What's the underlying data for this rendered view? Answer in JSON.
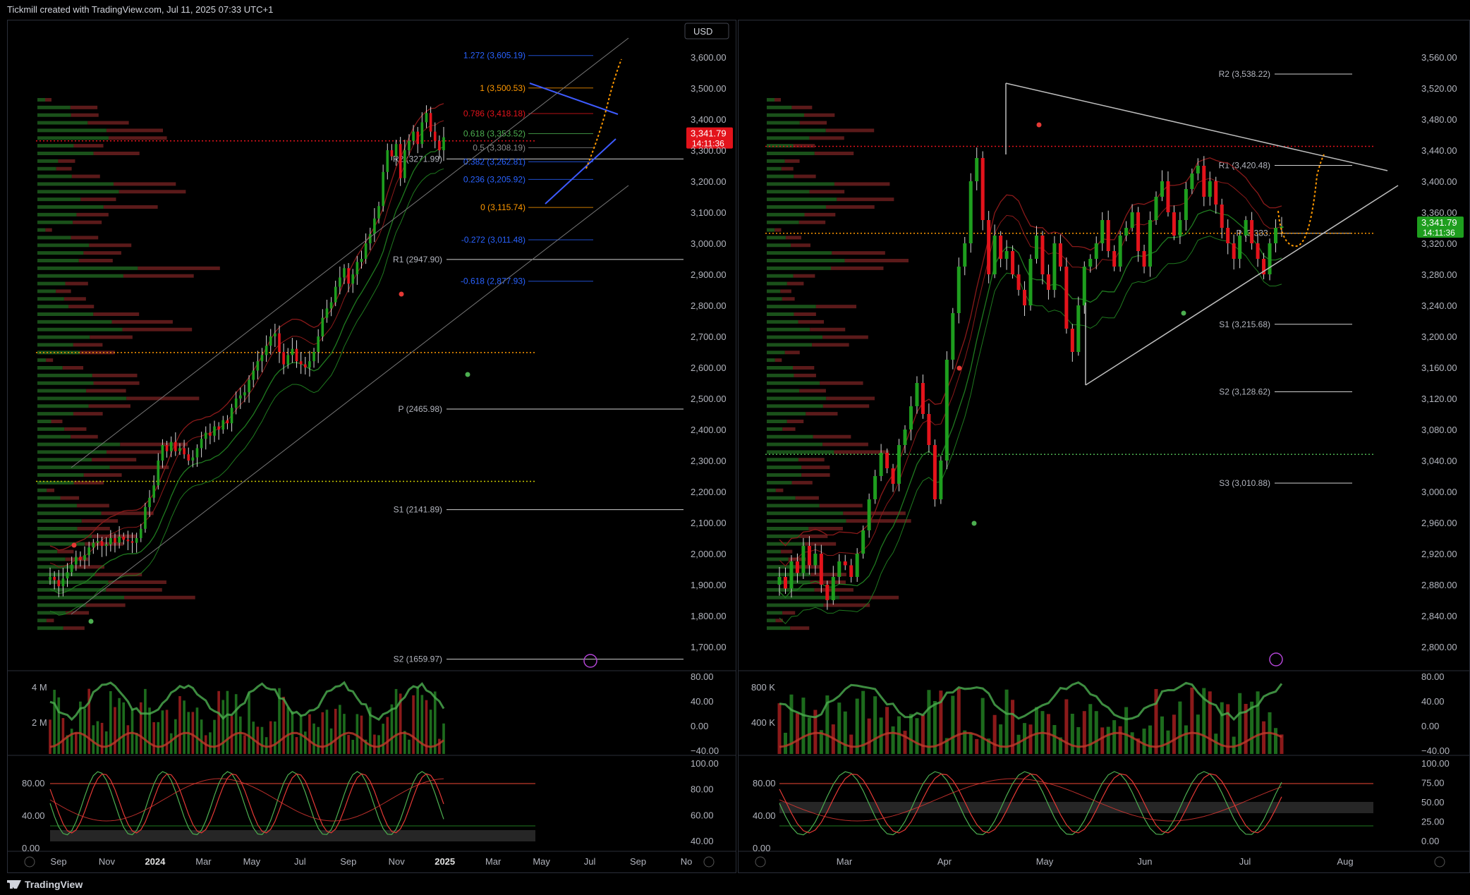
{
  "header": {
    "title": "Tickmill created with TradingView.com, Jul 11, 2025 07:33 UTC+1"
  },
  "footer": {
    "brand": "TradingView"
  },
  "colors": {
    "up": "#26a69a",
    "green": "#1b8a1b",
    "red": "#e3131b",
    "orange": "#ff9800",
    "blue": "#2962ff",
    "bg": "#000000"
  },
  "chart_data": [
    {
      "type": "candlestick",
      "panel": "left-weekly",
      "currency_label": "USD",
      "price_axis_ticks": [
        "3,600.00",
        "3,500.00",
        "3,400.00",
        "3,300.00",
        "3,200.00",
        "3,100.00",
        "3,000.00",
        "2,900.00",
        "2,800.00",
        "2,700.00",
        "2,600.00",
        "2,500.00",
        "2,400.00",
        "2,300.00",
        "2,200.00",
        "2,100.00",
        "2,000.00",
        "1,900.00",
        "1,800.00",
        "1,700.00"
      ],
      "ylim": [
        1650,
        3650
      ],
      "time_axis_ticks": [
        "Sep",
        "Nov",
        "2024",
        "Mar",
        "May",
        "Jul",
        "Sep",
        "Nov",
        "2025",
        "Mar",
        "May",
        "Jul",
        "Sep",
        "No"
      ],
      "last_price": "3,341.79",
      "countdown": "14:11:36",
      "fib_levels": [
        {
          "label": "1.272 (3,605.19)",
          "value": 3605.19,
          "color": "#2962ff"
        },
        {
          "label": "1 (3,500.53)",
          "value": 3500.53,
          "color": "#ff9800"
        },
        {
          "label": "0.786 (3,418.18)",
          "value": 3418.18,
          "color": "#e3131b"
        },
        {
          "label": "0.618 (3,353.52)",
          "value": 3353.52,
          "color": "#4caf50"
        },
        {
          "label": "0.5 (3,308.19)",
          "value": 3308.19,
          "color": "#888888"
        },
        {
          "label": "0.382 (3,262.81)",
          "value": 3262.81,
          "color": "#2962ff"
        },
        {
          "label": "0.236 (3,205.92)",
          "value": 3205.92,
          "color": "#2962ff"
        },
        {
          "label": "0 (3,115.74)",
          "value": 3115.74,
          "color": "#ff9800"
        },
        {
          "label": "-0.272 (3,011.48)",
          "value": 3011.48,
          "color": "#2962ff"
        },
        {
          "label": "-0.618 (2,877.93)",
          "value": 2877.93,
          "color": "#2962ff"
        }
      ],
      "pivot_levels": [
        {
          "label": "R2 (3271.99)",
          "value": 3271.99
        },
        {
          "label": "R1 (2947.90)",
          "value": 2947.9
        },
        {
          "label": "P (2465.98)",
          "value": 2465.98
        },
        {
          "label": "S1 (2141.89)",
          "value": 2141.89
        },
        {
          "label": "S2 (1659.97)",
          "value": 1659.97
        }
      ],
      "closes": [
        1925,
        1915,
        1895,
        1920,
        1940,
        1965,
        1990,
        1980,
        1995,
        2020,
        2035,
        2040,
        2025,
        2030,
        2050,
        2035,
        2055,
        2045,
        2040,
        2035,
        2050,
        2080,
        2150,
        2180,
        2220,
        2300,
        2350,
        2330,
        2360,
        2330,
        2340,
        2320,
        2300,
        2310,
        2340,
        2370,
        2390,
        2380,
        2410,
        2400,
        2430,
        2420,
        2470,
        2500,
        2510,
        2520,
        2560,
        2590,
        2620,
        2640,
        2670,
        2700,
        2710,
        2650,
        2610,
        2640,
        2660,
        2620,
        2610,
        2600,
        2620,
        2650,
        2700,
        2760,
        2790,
        2810,
        2860,
        2890,
        2920,
        2870,
        2900,
        2940,
        2950,
        3000,
        3030,
        3080,
        3120,
        3230,
        3300,
        3280,
        3320,
        3210,
        3300,
        3330,
        3360,
        3320,
        3390,
        3420,
        3360,
        3330,
        3300,
        3341.79
      ],
      "volume": {
        "axis_ticks": [
          "4 M",
          "2 M"
        ],
        "right_ticks": [
          "80.00",
          "40.00",
          "0.00",
          "−40.00"
        ]
      },
      "oscillator": {
        "left_ticks": [
          "80.00",
          "40.00",
          "0.00"
        ],
        "right_ticks": [
          "100.00",
          "80.00",
          "60.00",
          "40.00"
        ]
      }
    },
    {
      "type": "candlestick",
      "panel": "right-daily",
      "price_axis_ticks": [
        "3,560.00",
        "3,520.00",
        "3,480.00",
        "3,440.00",
        "3,400.00",
        "3,360.00",
        "3,320.00",
        "3,280.00",
        "3,240.00",
        "3,200.00",
        "3,160.00",
        "3,120.00",
        "3,080.00",
        "3,040.00",
        "3,000.00",
        "2,960.00",
        "2,920.00",
        "2,880.00",
        "2,840.00",
        "2,800.00"
      ],
      "ylim": [
        2780,
        3580
      ],
      "time_axis_ticks": [
        "Mar",
        "Apr",
        "May",
        "Jun",
        "Jul",
        "Aug"
      ],
      "last_price": "3,341.79",
      "countdown": "14:11:36",
      "pivot_levels": [
        {
          "label": "R2 (3,538.22)",
          "value": 3538.22
        },
        {
          "label": "R1 (3,420.48)",
          "value": 3420.48
        },
        {
          "label": "P (3,333.",
          "value": 3333.0
        },
        {
          "label": "S1 (3,215.68)",
          "value": 3215.68
        },
        {
          "label": "S2 (3,128.62)",
          "value": 3128.62
        },
        {
          "label": "S3 (3,010.88)",
          "value": 3010.88
        }
      ],
      "closes": [
        2890,
        2875,
        2910,
        2895,
        2930,
        2905,
        2920,
        2880,
        2860,
        2890,
        2910,
        2905,
        2890,
        2920,
        2950,
        2990,
        3020,
        3050,
        3030,
        3010,
        3060,
        3080,
        3110,
        3140,
        3100,
        3060,
        2990,
        3040,
        3170,
        3230,
        3290,
        3320,
        3400,
        3430,
        3350,
        3280,
        3330,
        3300,
        3310,
        3280,
        3260,
        3240,
        3300,
        3330,
        3280,
        3260,
        3320,
        3290,
        3210,
        3180,
        3240,
        3290,
        3300,
        3320,
        3350,
        3310,
        3290,
        3330,
        3340,
        3360,
        3310,
        3290,
        3350,
        3380,
        3400,
        3360,
        3330,
        3350,
        3390,
        3410,
        3420,
        3380,
        3400,
        3370,
        3340,
        3320,
        3300,
        3330,
        3350,
        3320,
        3300,
        3280,
        3320,
        3340,
        3341.79
      ],
      "volume": {
        "axis_ticks": [
          "800 K",
          "400 K"
        ],
        "right_ticks": [
          "80.00",
          "40.00",
          "0.00",
          "−40.00"
        ]
      },
      "oscillator": {
        "left_ticks": [
          "80.00",
          "40.00",
          "0.00"
        ],
        "right_ticks": [
          "100.00",
          "75.00",
          "50.00",
          "25.00",
          "0.00"
        ]
      }
    }
  ]
}
